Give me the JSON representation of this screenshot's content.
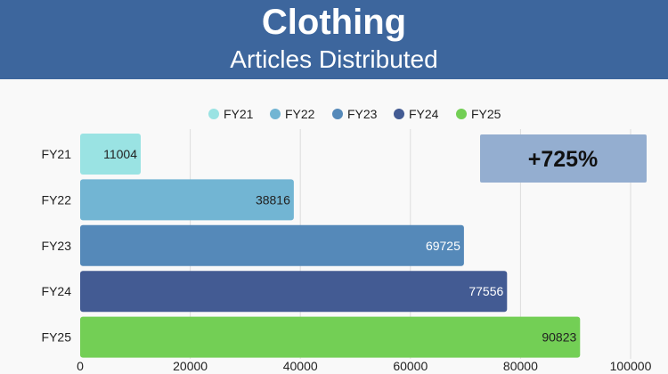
{
  "header": {
    "title": "Clothing",
    "subtitle": "Articles Distributed"
  },
  "chart_data": {
    "type": "bar",
    "orientation": "horizontal",
    "categories": [
      "FY21",
      "FY22",
      "FY23",
      "FY24",
      "FY25"
    ],
    "values": [
      11004,
      38816,
      69725,
      77556,
      90823
    ],
    "colors": [
      "#9ae3e3",
      "#72b5d3",
      "#5589b9",
      "#435b93",
      "#73cf55"
    ],
    "legend": [
      "FY21",
      "FY22",
      "FY23",
      "FY24",
      "FY25"
    ],
    "legend_position": "top",
    "xlim": [
      0,
      100000
    ],
    "xticks": [
      "0",
      "20000",
      "40000",
      "60000",
      "80000",
      "100000"
    ],
    "grid": "vertical",
    "annotation": {
      "text": "+725%",
      "color": "#94aed0"
    }
  },
  "theme": {
    "header_bg": "#3d669d",
    "page_bg": "#f9f9f9",
    "grid_color": "#dddddd"
  }
}
